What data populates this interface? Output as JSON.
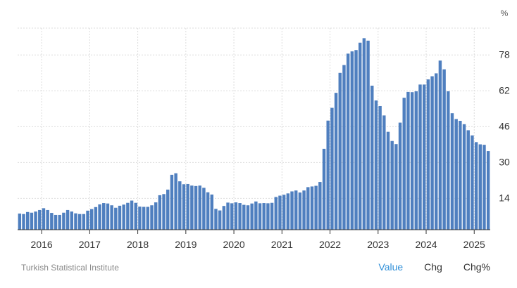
{
  "source": "Turkish Statistical Institute",
  "tabs": [
    {
      "label": "Value",
      "active": true
    },
    {
      "label": "Chg",
      "active": false
    },
    {
      "label": "Chg%",
      "active": false
    }
  ],
  "colors": {
    "bar": "#4f7fbf",
    "axis": "#333333",
    "grid": "#dcdcdc",
    "tab_active": "#2f8fd8"
  },
  "chart_data": {
    "type": "bar",
    "ylabel": "%",
    "ylim": [
      0,
      90
    ],
    "yticks": [
      14,
      30,
      46,
      62,
      78
    ],
    "x_start": "2015-07",
    "year_labels": [
      "2016",
      "2017",
      "2018",
      "2019",
      "2020",
      "2021",
      "2022",
      "2023",
      "2024",
      "2025"
    ],
    "values": [
      7.2,
      7.0,
      7.9,
      7.6,
      8.1,
      8.8,
      9.6,
      8.8,
      7.5,
      6.6,
      6.6,
      7.6,
      8.8,
      8.1,
      7.3,
      7.0,
      7.0,
      8.5,
      9.2,
      10.1,
      11.3,
      11.9,
      11.7,
      10.9,
      9.8,
      10.7,
      11.2,
      12.0,
      13.0,
      12.0,
      10.3,
      10.2,
      10.2,
      10.9,
      12.2,
      15.4,
      15.9,
      17.9,
      24.5,
      25.2,
      21.6,
      20.3,
      20.4,
      19.7,
      19.5,
      19.7,
      18.7,
      16.7,
      15.7,
      9.3,
      8.6,
      10.6,
      12.1,
      11.8,
      12.2,
      11.9,
      11.1,
      10.9,
      11.7,
      12.6,
      11.8,
      11.9,
      11.8,
      12.0,
      14.6,
      15.2,
      15.6,
      16.2,
      17.1,
      17.5,
      16.6,
      17.5,
      19.0,
      19.3,
      19.6,
      21.3,
      36.1,
      48.7,
      54.4,
      61.1,
      70.0,
      73.5,
      78.6,
      79.6,
      80.2,
      83.5,
      85.5,
      84.4,
      64.3,
      57.7,
      55.2,
      51.0,
      43.7,
      39.6,
      38.2,
      47.8,
      58.9,
      61.5,
      61.4,
      61.8,
      64.8,
      64.8,
      67.1,
      68.5,
      69.8,
      75.5,
      71.6,
      61.8,
      52.0,
      49.4,
      48.6,
      47.1,
      44.4,
      42.1,
      39.1,
      38.1,
      37.9,
      35.1
    ]
  }
}
